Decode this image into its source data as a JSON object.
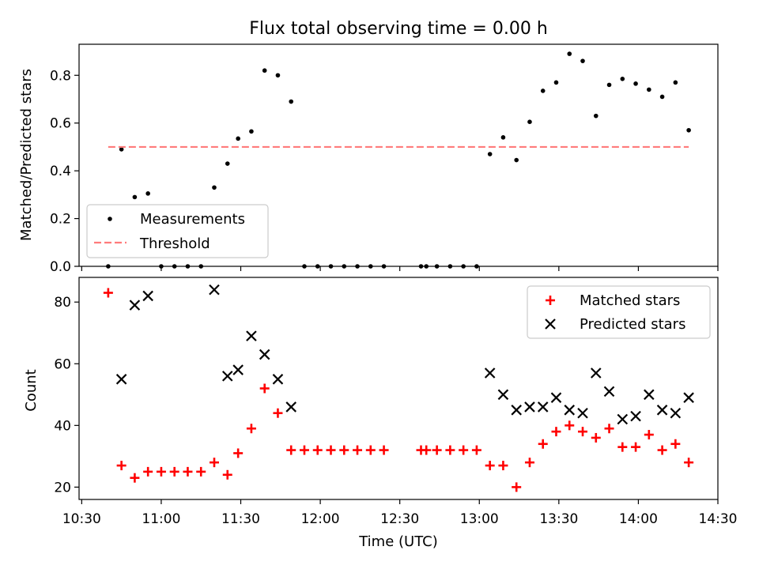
{
  "chart_data": [
    {
      "type": "scatter",
      "title": "Flux total observing time = 0.00 h",
      "xlabel": "",
      "ylabel": "Matched/Predicted stars",
      "xlim": [
        "10:29",
        "14:30"
      ],
      "ylim": [
        0,
        0.93
      ],
      "yticks": [
        "0.0",
        "0.2",
        "0.4",
        "0.6",
        "0.8"
      ],
      "legend_position": "lower-left",
      "series": [
        {
          "name": "Measurements",
          "marker": "dot",
          "color": "#000000",
          "x": [
            "10:40",
            "10:45",
            "10:50",
            "10:55",
            "11:00",
            "11:05",
            "11:10",
            "11:15",
            "11:20",
            "11:25",
            "11:29",
            "11:34",
            "11:39",
            "11:44",
            "11:49",
            "11:54",
            "11:59",
            "12:04",
            "12:09",
            "12:14",
            "12:19",
            "12:24",
            "12:38",
            "12:40",
            "12:44",
            "12:49",
            "12:54",
            "12:59",
            "13:04",
            "13:09",
            "13:14",
            "13:19",
            "13:24",
            "13:29",
            "13:34",
            "13:39",
            "13:44",
            "13:49",
            "13:54",
            "13:59",
            "14:04",
            "14:09",
            "14:14",
            "14:19"
          ],
          "values": [
            0.0,
            0.49,
            0.29,
            0.305,
            0.0,
            0.0,
            0.0,
            0.0,
            0.33,
            0.43,
            0.535,
            0.565,
            0.82,
            0.8,
            0.69,
            0.0,
            0.0,
            0.0,
            0.0,
            0.0,
            0.0,
            0.0,
            0.0,
            0.0,
            0.0,
            0.0,
            0.0,
            0.0,
            0.47,
            0.54,
            0.445,
            0.605,
            0.735,
            0.77,
            0.89,
            0.86,
            0.63,
            0.76,
            0.785,
            0.765,
            0.74,
            0.71,
            0.77,
            0.57
          ]
        },
        {
          "name": "Threshold",
          "marker": "dashed-line",
          "color": "#ff7b7b",
          "x": [
            "10:40",
            "14:19"
          ],
          "values": [
            0.5,
            0.5
          ]
        }
      ]
    },
    {
      "type": "scatter",
      "title": "",
      "xlabel": "Time (UTC)",
      "ylabel": "Count",
      "xlim": [
        "10:29",
        "14:30"
      ],
      "ylim": [
        16,
        88
      ],
      "xticks": [
        "10:30",
        "11:00",
        "11:30",
        "12:00",
        "12:30",
        "13:00",
        "13:30",
        "14:00",
        "14:30"
      ],
      "yticks": [
        "20",
        "40",
        "60",
        "80"
      ],
      "legend_position": "upper-right",
      "series": [
        {
          "name": "Matched stars",
          "marker": "plus",
          "color": "#ff0000",
          "x": [
            "10:40",
            "10:45",
            "10:50",
            "10:55",
            "11:00",
            "11:05",
            "11:10",
            "11:15",
            "11:20",
            "11:25",
            "11:29",
            "11:34",
            "11:39",
            "11:44",
            "11:49",
            "11:54",
            "11:59",
            "12:04",
            "12:09",
            "12:14",
            "12:19",
            "12:24",
            "12:38",
            "12:40",
            "12:44",
            "12:49",
            "12:54",
            "12:59",
            "13:04",
            "13:09",
            "13:14",
            "13:19",
            "13:24",
            "13:29",
            "13:34",
            "13:39",
            "13:44",
            "13:49",
            "13:54",
            "13:59",
            "14:04",
            "14:09",
            "14:14",
            "14:19"
          ],
          "values": [
            83,
            27,
            23,
            25,
            25,
            25,
            25,
            25,
            28,
            24,
            31,
            39,
            52,
            44,
            32,
            32,
            32,
            32,
            32,
            32,
            32,
            32,
            32,
            32,
            32,
            32,
            32,
            32,
            27,
            27,
            20,
            28,
            34,
            38,
            40,
            38,
            36,
            39,
            33,
            33,
            37,
            32,
            34,
            28
          ]
        },
        {
          "name": "Predicted stars",
          "marker": "x",
          "color": "#000000",
          "x": [
            "10:45",
            "10:50",
            "10:55",
            "11:20",
            "11:25",
            "11:29",
            "11:34",
            "11:39",
            "11:44",
            "11:49",
            "13:04",
            "13:09",
            "13:14",
            "13:19",
            "13:24",
            "13:29",
            "13:34",
            "13:39",
            "13:44",
            "13:49",
            "13:54",
            "13:59",
            "14:04",
            "14:09",
            "14:14",
            "14:19"
          ],
          "values": [
            55,
            79,
            82,
            84,
            56,
            58,
            69,
            63,
            55,
            46,
            57,
            50,
            45,
            46,
            46,
            49,
            45,
            44,
            57,
            51,
            42,
            43,
            50,
            45,
            44,
            49
          ]
        }
      ]
    }
  ]
}
